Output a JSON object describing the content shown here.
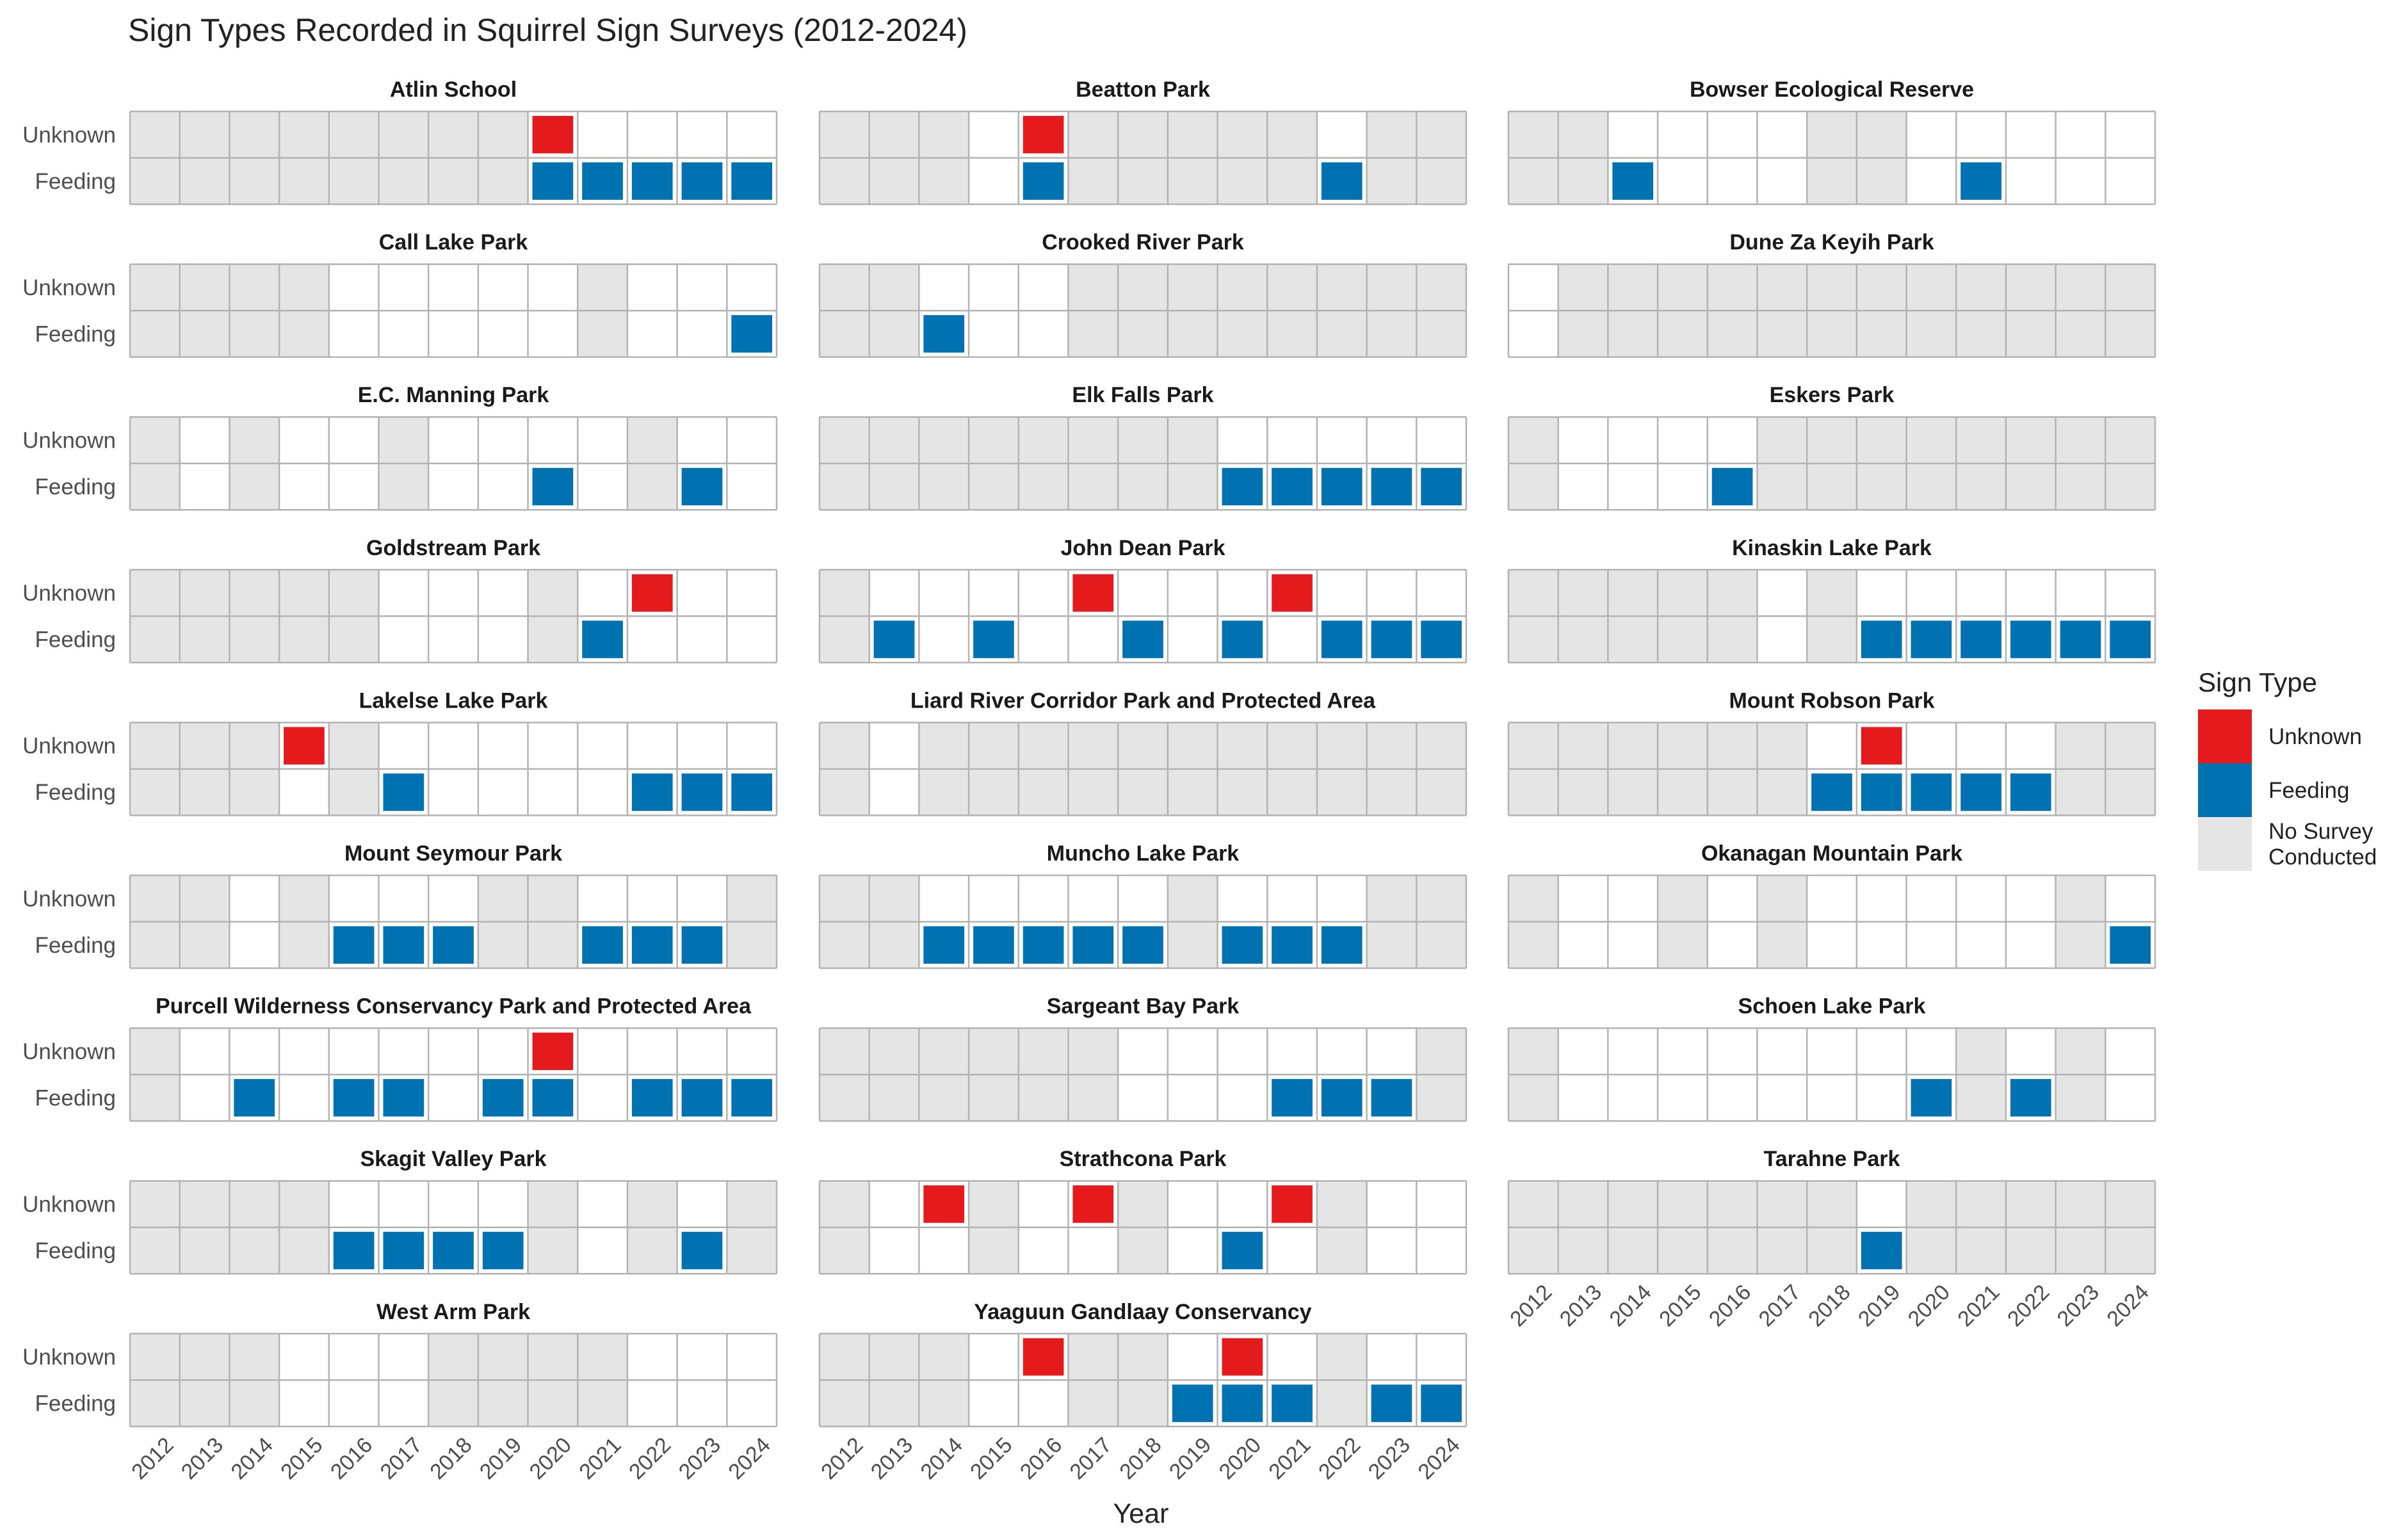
{
  "chart_data": {
    "type": "heatmap",
    "title": "Sign Types Recorded in Squirrel Sign Surveys (2012-2024)",
    "xlabel": "Year",
    "years": [
      "2012",
      "2013",
      "2014",
      "2015",
      "2016",
      "2017",
      "2018",
      "2019",
      "2020",
      "2021",
      "2022",
      "2023",
      "2024"
    ],
    "rows": [
      "Unknown",
      "Feeding"
    ],
    "legend": {
      "title": "Sign Type",
      "position": "right",
      "items": [
        {
          "key": "U",
          "label": "Unknown",
          "color": "#E41A1C"
        },
        {
          "key": "F",
          "label": "Feeding",
          "color": "#0072B2"
        },
        {
          "key": "N",
          "label": "No Survey\nConducted",
          "color": "#E5E5E5"
        }
      ]
    },
    "grid": true,
    "cell_encoding": "one character per year 2012-2024: U = Unknown, F = Feeding, N = No Survey Conducted, . = surveyed with no sign",
    "panels": [
      {
        "name": "Atlin School",
        "unknown": "NNNNNNNNU....",
        "feeding": "NNNNNNNNFFFFF"
      },
      {
        "name": "Beatton Park",
        "unknown": "NNN.UNNNNN.NN",
        "feeding": "NNN.FNNNNNFNN"
      },
      {
        "name": "Bowser Ecological Reserve",
        "unknown": "NN....NN.....",
        "feeding": "NNF...NN.F..."
      },
      {
        "name": "Call Lake Park",
        "unknown": "NNNN.....N...",
        "feeding": "NNNN.....N..F"
      },
      {
        "name": "Crooked River Park",
        "unknown": "NN...NNNNNNNN",
        "feeding": "NNF..NNNNNNNN"
      },
      {
        "name": "Dune Za Keyih Park",
        "unknown": ".NNNNNNNNNNNN",
        "feeding": ".NNNNNNNNNNNN"
      },
      {
        "name": "E.C. Manning Park",
        "unknown": "N.N..N....N..",
        "feeding": "N.N..N..F.NF."
      },
      {
        "name": "Elk Falls Park",
        "unknown": "NNNNNNNN.....",
        "feeding": "NNNNNNNNFFFFF"
      },
      {
        "name": "Eskers Park",
        "unknown": "N....NNNNNNNN",
        "feeding": "N...FNNNNNNNN"
      },
      {
        "name": "Goldstream Park",
        "unknown": "NNNNN...N.U..",
        "feeding": "NNNNN...NF..."
      },
      {
        "name": "John Dean Park",
        "unknown": "N....U...U...",
        "feeding": "NF.F..F.F.FFF"
      },
      {
        "name": "Kinaskin Lake Park",
        "unknown": "NNNNN.N......",
        "feeding": "NNNNN.NFFFFFF"
      },
      {
        "name": "Lakelse Lake Park",
        "unknown": "NNNUN........",
        "feeding": "NNN.NF....FFF"
      },
      {
        "name": "Liard River Corridor Park and Protected Area",
        "unknown": "N.NNNNNNNNNNN",
        "feeding": "N.NNNNNNNNNNN"
      },
      {
        "name": "Mount Robson Park",
        "unknown": "NNNNNN.U...NN",
        "feeding": "NNNNNNFFFFFNN"
      },
      {
        "name": "Mount Seymour Park",
        "unknown": "NN.N...NN...N",
        "feeding": "NN.NFFFNNFFFN"
      },
      {
        "name": "Muncho Lake Park",
        "unknown": "NN.....N...NN",
        "feeding": "NNFFFFFNFFFNN"
      },
      {
        "name": "Okanagan Mountain Park",
        "unknown": "N..N.N.....N.",
        "feeding": "N..N.N.....NF"
      },
      {
        "name": "Purcell Wilderness Conservancy Park and Protected Area",
        "unknown": "N.......U....",
        "feeding": "N.F.FF.FF.FFF"
      },
      {
        "name": "Sargeant Bay Park",
        "unknown": "NNNNNN......N",
        "feeding": "NNNNNN...FFFN"
      },
      {
        "name": "Schoen Lake Park",
        "unknown": "N........N.N.",
        "feeding": "N.......FNFN."
      },
      {
        "name": "Skagit Valley Park",
        "unknown": "NNNN....N.N.N",
        "feeding": "NNNNFFFFN.NFN"
      },
      {
        "name": "Strathcona Park",
        "unknown": "N.UN.UN..UN..",
        "feeding": "N..N..N.F.N.."
      },
      {
        "name": "Tarahne Park",
        "unknown": "NNNNNNN.NNNNN",
        "feeding": "NNNNNNNFNNNNN"
      },
      {
        "name": "West Arm Park",
        "unknown": "NNN...NNNN...",
        "feeding": "NNN...NNNN..."
      },
      {
        "name": "Yaaguun Gandlaay Conservancy",
        "unknown": "NNN.UNN.U.N..",
        "feeding": "NNN..NNFFFNFF"
      }
    ]
  }
}
